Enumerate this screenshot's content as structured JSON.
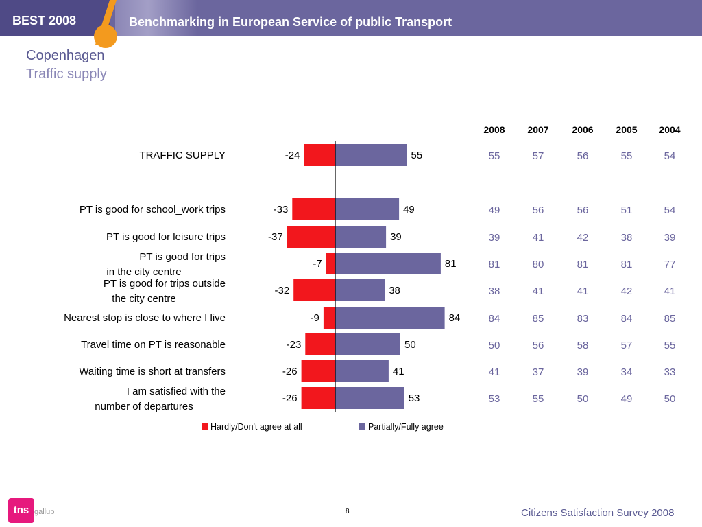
{
  "header": {
    "left": "BEST 2008",
    "title": "Benchmarking in European Service of public Transport"
  },
  "page": {
    "title": "Copenhagen",
    "subtitle": "Traffic supply"
  },
  "chart_data": {
    "type": "bar",
    "orientation": "horizontal-diverging",
    "categories": [
      "TRAFFIC SUPPLY",
      "PT is good for school_work trips",
      "PT is good for leisure trips",
      "PT is good for trips in the city centre",
      "PT is good for trips outside the city centre",
      "Nearest stop is close to where I live",
      "Travel time on PT is reasonable",
      "Waiting time is short at transfers",
      "I am satisfied with the number of departures"
    ],
    "series": [
      {
        "name": "Hardly/Don't agree at all",
        "color": "#f2171d",
        "values": [
          -24,
          -33,
          -37,
          -7,
          -32,
          -9,
          -23,
          -26,
          -26
        ]
      },
      {
        "name": "Partially/Fully agree",
        "color": "#6b669e",
        "values": [
          55,
          49,
          39,
          81,
          38,
          84,
          50,
          41,
          53
        ]
      }
    ],
    "legend": "bottom",
    "table": {
      "years": [
        "2008",
        "2007",
        "2006",
        "2005",
        "2004"
      ],
      "rows": [
        [
          "55",
          "57",
          "56",
          "55",
          "54"
        ],
        [
          "49",
          "56",
          "56",
          "51",
          "54"
        ],
        [
          "39",
          "41",
          "42",
          "38",
          "39"
        ],
        [
          "81",
          "80",
          "81",
          "81",
          "77"
        ],
        [
          "38",
          "41",
          "41",
          "42",
          "41"
        ],
        [
          "84",
          "85",
          "83",
          "84",
          "85"
        ],
        [
          "50",
          "56",
          "58",
          "57",
          "55"
        ],
        [
          "41",
          "37",
          "39",
          "34",
          "33"
        ],
        [
          "53",
          "55",
          "50",
          "49",
          "50"
        ]
      ],
      "value_color": "#6b669e"
    }
  },
  "footer": {
    "logo": "tns",
    "logo_sub": "gallup",
    "page": "8",
    "survey": "Citizens Satisfaction Survey 2008"
  }
}
